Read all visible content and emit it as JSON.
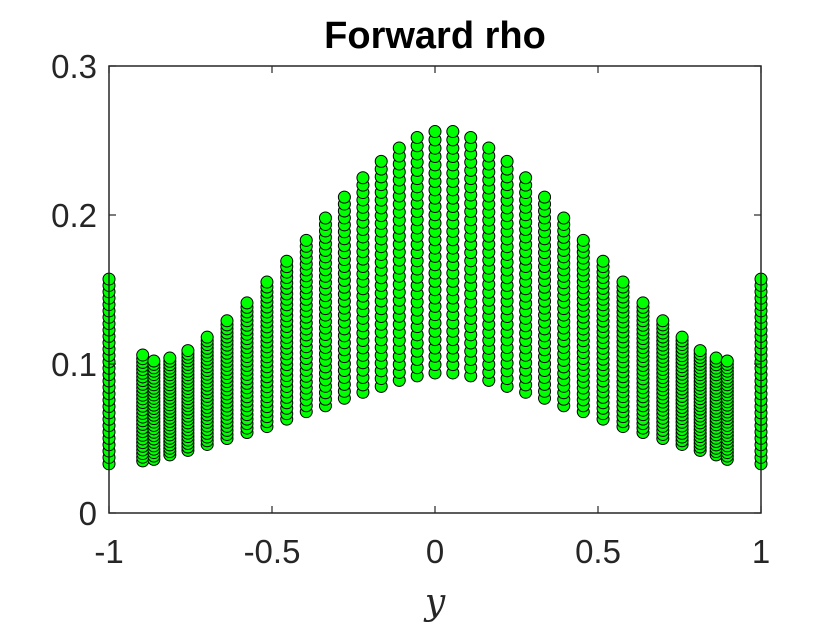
{
  "chart_data": {
    "type": "scatter",
    "title": "Forward rho",
    "xlabel": "y",
    "ylabel": "",
    "xlim": [
      -1,
      1
    ],
    "ylim": [
      0,
      0.3
    ],
    "xticks": [
      -1,
      -0.5,
      0,
      0.5,
      1
    ],
    "xtick_labels": [
      "-1",
      "-0.5",
      "0",
      "0.5",
      "1"
    ],
    "yticks": [
      0,
      0.1,
      0.2,
      0.3
    ],
    "ytick_labels": [
      "0",
      "0.1",
      "0.2",
      "0.3"
    ],
    "grid": false,
    "box": true,
    "marker_color": "#00ff00",
    "marker_edge_color": "#000000",
    "series_count": 30,
    "x": [
      -1.0,
      -0.8966,
      -0.8624,
      -0.8134,
      -0.7579,
      -0.6988,
      -0.638,
      -0.5767,
      -0.5155,
      -0.4548,
      -0.3949,
      -0.336,
      -0.278,
      -0.2211,
      -0.165,
      -0.1096,
      -0.0547,
      0.0,
      0.0547,
      0.1096,
      0.165,
      0.2211,
      0.278,
      0.336,
      0.3949,
      0.4548,
      0.5155,
      0.5767,
      0.638,
      0.6988,
      0.7579,
      0.8134,
      0.8624,
      0.8966,
      1.0
    ],
    "top_curve": [
      0.104,
      0.106,
      0.102,
      0.104,
      0.109,
      0.118,
      0.129,
      0.141,
      0.155,
      0.169,
      0.183,
      0.198,
      0.212,
      0.225,
      0.236,
      0.245,
      0.252,
      0.256,
      0.256,
      0.252,
      0.245,
      0.236,
      0.225,
      0.212,
      0.198,
      0.183,
      0.169,
      0.155,
      0.141,
      0.129,
      0.118,
      0.109,
      0.104,
      0.102,
      0.104
    ],
    "bottom_curve": [
      0.033,
      0.035,
      0.036,
      0.039,
      0.042,
      0.046,
      0.05,
      0.054,
      0.058,
      0.063,
      0.068,
      0.072,
      0.077,
      0.081,
      0.085,
      0.089,
      0.092,
      0.094,
      0.094,
      0.092,
      0.089,
      0.085,
      0.081,
      0.077,
      0.072,
      0.068,
      0.063,
      0.058,
      0.054,
      0.05,
      0.046,
      0.042,
      0.039,
      0.036,
      0.033
    ],
    "boundary_max": 0.157
  }
}
